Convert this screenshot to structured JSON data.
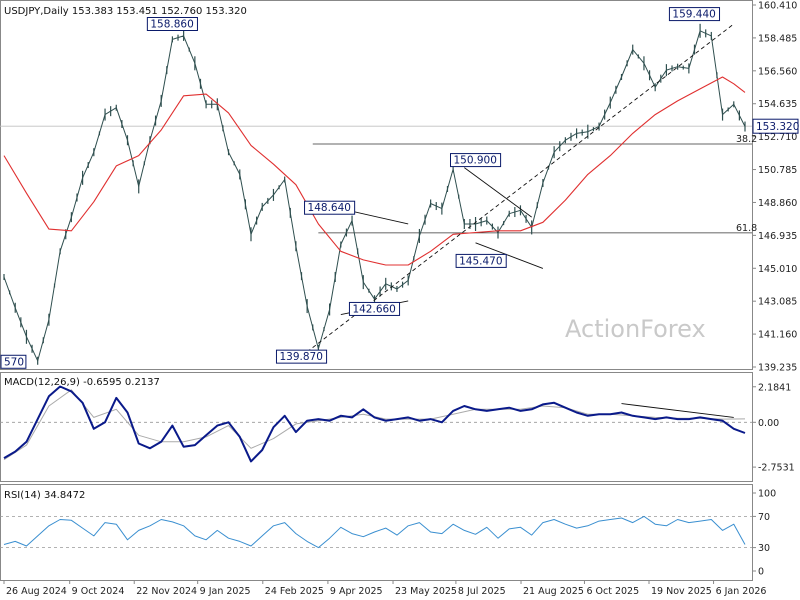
{
  "chart_data": {
    "type": "line",
    "main": {
      "header": "USDJPY,Daily  153.383 153.451 152.760 153.320",
      "ylim": [
        139.235,
        160.41
      ],
      "y_ticks": [
        160.41,
        158.485,
        156.56,
        154.635,
        152.71,
        150.785,
        148.86,
        146.935,
        145.01,
        143.085,
        141.16,
        139.235
      ],
      "current_price": "153.320",
      "watermark": "ActionForex",
      "xlim": [
        0,
        132
      ],
      "series": [
        {
          "name": "price",
          "color": "#2f4f4f",
          "x": [
            0,
            2,
            4,
            6,
            8,
            10,
            12,
            14,
            16,
            18,
            20,
            22,
            24,
            26,
            28,
            30,
            32,
            34,
            36,
            38,
            40,
            42,
            44,
            46,
            48,
            50,
            52,
            54,
            56,
            58,
            60,
            62,
            64,
            66,
            68,
            70,
            72,
            74,
            76,
            78,
            80,
            82,
            84,
            86,
            88,
            90,
            92,
            94,
            96,
            98,
            100,
            102,
            104,
            106,
            108,
            110,
            112,
            114,
            116,
            118,
            120,
            122,
            124,
            126,
            128,
            130,
            132
          ],
          "y": [
            144.5,
            142.7,
            141.0,
            139.6,
            142.0,
            146.0,
            148.0,
            150.3,
            151.8,
            154.0,
            154.4,
            152.5,
            149.8,
            152.5,
            154.8,
            158.4,
            158.6,
            157.0,
            154.6,
            154.6,
            151.8,
            150.5,
            147.0,
            148.6,
            149.3,
            150.2,
            146.3,
            142.8,
            140.3,
            142.6,
            146.4,
            147.8,
            144.2,
            143.2,
            144.1,
            143.8,
            144.3,
            146.9,
            148.8,
            148.5,
            150.8,
            147.6,
            147.6,
            147.8,
            147.1,
            148.2,
            148.4,
            147.4,
            150.0,
            151.8,
            152.5,
            152.9,
            153.0,
            153.3,
            154.7,
            156.2,
            157.8,
            157.0,
            155.6,
            156.6,
            156.8,
            156.7,
            158.9,
            158.6,
            154.0,
            154.6,
            153.3
          ]
        },
        {
          "name": "moving average",
          "color": "#e03030",
          "x": [
            0,
            4,
            8,
            12,
            16,
            20,
            24,
            28,
            32,
            36,
            40,
            44,
            48,
            52,
            56,
            60,
            64,
            68,
            72,
            76,
            80,
            84,
            88,
            92,
            96,
            100,
            104,
            108,
            112,
            116,
            120,
            124,
            128,
            130,
            132
          ],
          "y": [
            151.6,
            149.4,
            147.3,
            147.2,
            148.9,
            151.0,
            151.6,
            153.1,
            155.1,
            155.2,
            154.1,
            152.2,
            151.1,
            149.9,
            147.6,
            146.0,
            145.5,
            145.2,
            145.2,
            146.0,
            147.0,
            147.1,
            147.2,
            147.2,
            147.7,
            149.0,
            150.5,
            151.6,
            152.9,
            154.0,
            154.8,
            155.5,
            156.2,
            155.8,
            155.3
          ]
        }
      ],
      "annotations": [
        {
          "text": "158.860",
          "x": 30,
          "y": 158.86
        },
        {
          "text": "159.440",
          "x": 123,
          "y": 159.44
        },
        {
          "text": "150.900",
          "x": 84,
          "y": 150.9
        },
        {
          "text": "148.640",
          "x": 58,
          "y": 148.64
        },
        {
          "text": "145.470",
          "x": 85,
          "y": 145.47
        },
        {
          "text": "142.660",
          "x": 66,
          "y": 142.66
        },
        {
          "text": "139.870",
          "x": 53,
          "y": 139.87
        },
        {
          "text": "570",
          "x": 0,
          "y": 139.57
        }
      ],
      "fib_levels": [
        {
          "label": "38.2",
          "y": 152.28,
          "x_start": 55
        },
        {
          "label": "61.8",
          "y": 147.08,
          "x_start": 56
        }
      ],
      "price_line": 153.32
    },
    "macd": {
      "header": "MACD(12,26,9) -0.6595 0.2137",
      "ylim": [
        -3.3,
        2.6
      ],
      "y_ticks": [
        "2.1841",
        "0.00",
        "-2.7531"
      ],
      "y_tick_values": [
        2.1841,
        0.0,
        -2.7531
      ],
      "zero_line": 0.0,
      "series": [
        {
          "name": "macd",
          "color": "#0a1a8a",
          "x": [
            0,
            2,
            4,
            6,
            8,
            10,
            12,
            14,
            16,
            18,
            20,
            22,
            24,
            26,
            28,
            30,
            32,
            34,
            36,
            38,
            40,
            42,
            44,
            46,
            48,
            50,
            52,
            54,
            56,
            58,
            60,
            62,
            64,
            66,
            68,
            70,
            72,
            74,
            76,
            78,
            80,
            82,
            84,
            86,
            88,
            90,
            92,
            94,
            96,
            98,
            100,
            102,
            104,
            106,
            108,
            110,
            112,
            114,
            116,
            118,
            120,
            122,
            124,
            126,
            128,
            130,
            132
          ],
          "y": [
            -2.2,
            -1.8,
            -1.2,
            0.2,
            1.6,
            2.2,
            1.9,
            1.2,
            -0.4,
            0.0,
            1.5,
            0.6,
            -1.3,
            -1.6,
            -1.2,
            -0.2,
            -1.5,
            -1.4,
            -0.8,
            -0.2,
            0.0,
            -0.9,
            -2.4,
            -1.7,
            -0.3,
            0.4,
            -0.6,
            0.1,
            0.2,
            0.1,
            0.4,
            0.3,
            0.8,
            0.3,
            0.1,
            0.2,
            0.3,
            0.1,
            0.2,
            0.0,
            0.7,
            1.0,
            0.8,
            0.7,
            0.8,
            0.9,
            0.7,
            0.8,
            1.1,
            1.2,
            0.9,
            0.6,
            0.4,
            0.5,
            0.5,
            0.6,
            0.4,
            0.3,
            0.2,
            0.3,
            0.2,
            0.2,
            0.3,
            0.2,
            0.1,
            -0.4,
            -0.66
          ]
        },
        {
          "name": "signal",
          "color": "#aaaaaa",
          "x": [
            0,
            4,
            8,
            12,
            16,
            20,
            24,
            28,
            32,
            36,
            40,
            44,
            48,
            52,
            56,
            60,
            64,
            68,
            72,
            76,
            80,
            84,
            88,
            92,
            96,
            100,
            104,
            108,
            112,
            116,
            120,
            124,
            128,
            132
          ],
          "y": [
            -2.3,
            -1.4,
            1.0,
            2.0,
            0.3,
            0.8,
            -0.8,
            -1.2,
            -1.2,
            -0.9,
            -0.2,
            -1.6,
            -1.0,
            -0.1,
            0.1,
            0.3,
            0.5,
            0.2,
            0.2,
            0.2,
            0.5,
            0.8,
            0.8,
            0.8,
            1.0,
            0.9,
            0.5,
            0.5,
            0.4,
            0.3,
            0.25,
            0.25,
            0.2,
            0.21
          ]
        }
      ]
    },
    "rsi": {
      "header": "RSI(14) 34.8472",
      "ylim": [
        0,
        100
      ],
      "y_ticks": [
        100,
        70,
        30,
        0
      ],
      "levels": [
        70,
        30
      ],
      "series": [
        {
          "name": "rsi",
          "color": "#3a8fd0",
          "x": [
            0,
            2,
            4,
            6,
            8,
            10,
            12,
            14,
            16,
            18,
            20,
            22,
            24,
            26,
            28,
            30,
            32,
            34,
            36,
            38,
            40,
            42,
            44,
            46,
            48,
            50,
            52,
            54,
            56,
            58,
            60,
            62,
            64,
            66,
            68,
            70,
            72,
            74,
            76,
            78,
            80,
            82,
            84,
            86,
            88,
            90,
            92,
            94,
            96,
            98,
            100,
            102,
            104,
            106,
            108,
            110,
            112,
            114,
            116,
            118,
            120,
            122,
            124,
            126,
            128,
            130,
            132
          ],
          "y": [
            34,
            38,
            32,
            45,
            58,
            66,
            65,
            55,
            45,
            62,
            60,
            40,
            52,
            58,
            66,
            63,
            58,
            45,
            40,
            52,
            42,
            38,
            32,
            45,
            58,
            62,
            48,
            38,
            30,
            42,
            56,
            48,
            44,
            50,
            55,
            46,
            58,
            62,
            50,
            48,
            60,
            52,
            47,
            56,
            42,
            54,
            56,
            46,
            62,
            66,
            60,
            55,
            58,
            64,
            66,
            68,
            62,
            70,
            60,
            58,
            66,
            62,
            64,
            66,
            52,
            60,
            34
          ]
        }
      ]
    },
    "x_labels": [
      {
        "text": "26 Aug 2024",
        "x": 0
      },
      {
        "text": "9 Oct 2024",
        "x": 11.7
      },
      {
        "text": "22 Nov 2024",
        "x": 23.2
      },
      {
        "text": "9 Jan 2025",
        "x": 34.5
      },
      {
        "text": "24 Feb 2025",
        "x": 46.1
      },
      {
        "text": "9 Apr 2025",
        "x": 57.7
      },
      {
        "text": "23 May 2025",
        "x": 69.3
      },
      {
        "text": "8 Jul 2025",
        "x": 80.5
      },
      {
        "text": "21 Aug 2025",
        "x": 92.1
      },
      {
        "text": "6 Oct 2025",
        "x": 103.4
      },
      {
        "text": "19 Nov 2025",
        "x": 114.9
      },
      {
        "text": "6 Jan 2026",
        "x": 126.4
      }
    ]
  }
}
